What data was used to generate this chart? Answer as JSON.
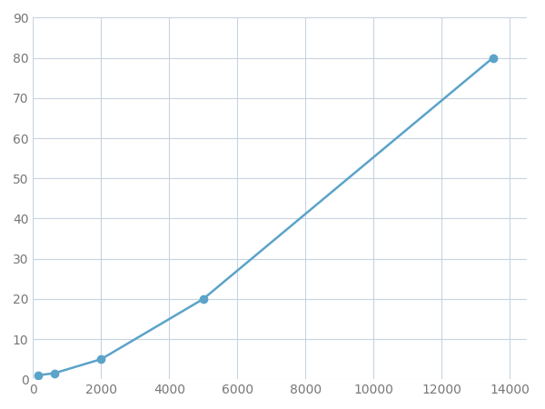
{
  "x": [
    156,
    625,
    2000,
    5000,
    13500
  ],
  "y": [
    1,
    1.5,
    5,
    20,
    80
  ],
  "line_color": "#5ba3c9",
  "marker_color": "#5ba3c9",
  "marker_size": 6,
  "line_width": 1.8,
  "xlim": [
    0,
    14500
  ],
  "ylim": [
    0,
    90
  ],
  "xticks": [
    0,
    2000,
    4000,
    6000,
    8000,
    10000,
    12000,
    14000
  ],
  "yticks": [
    0,
    10,
    20,
    30,
    40,
    50,
    60,
    70,
    80,
    90
  ],
  "grid_color": "#c8d4e0",
  "grid_linestyle": "-",
  "grid_linewidth": 0.8,
  "background_color": "#ffffff",
  "tick_fontsize": 10,
  "fig_width": 6.0,
  "fig_height": 4.5,
  "dpi": 100
}
